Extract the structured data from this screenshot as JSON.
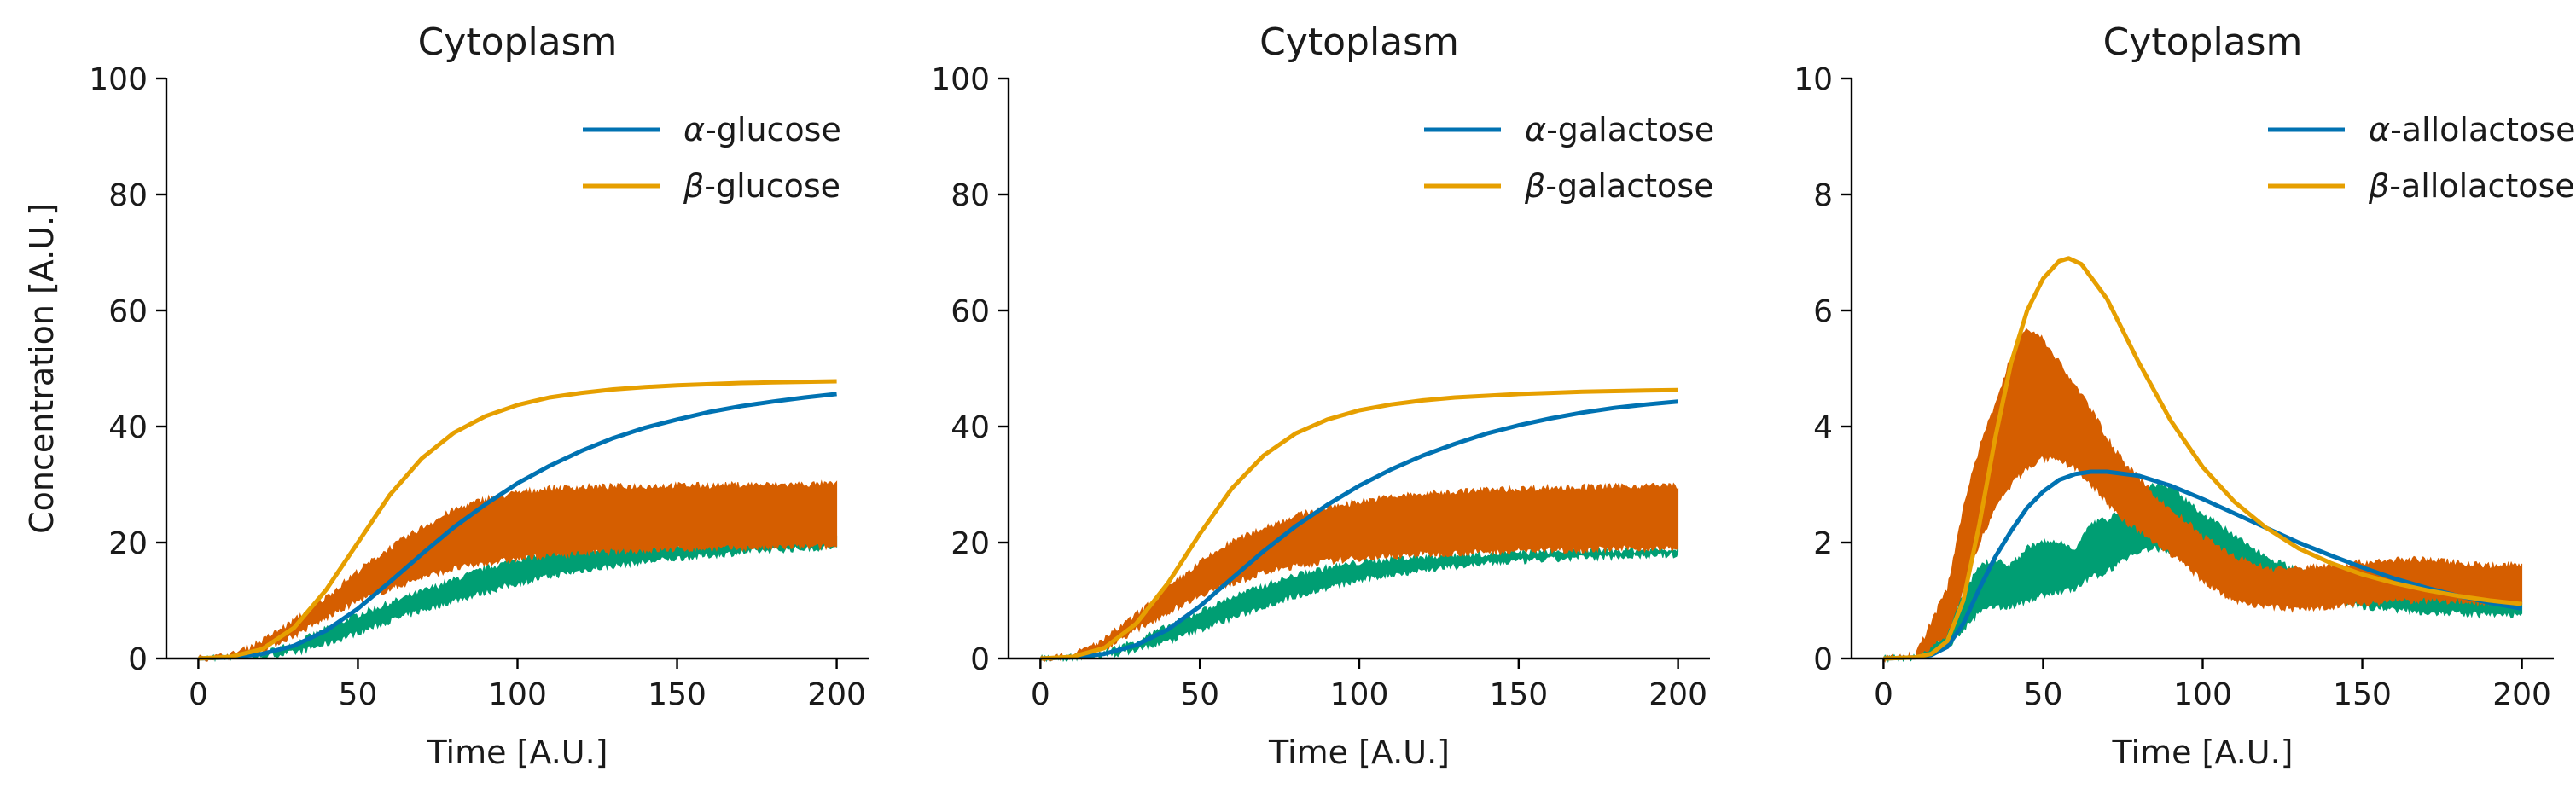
{
  "chart_data": [
    {
      "type": "line",
      "title": "Cytoplasm",
      "xlabel": "Time [A.U.]",
      "ylabel": "Concentration [A.U.]",
      "xlim": [
        -10,
        210
      ],
      "ylim": [
        0,
        100
      ],
      "xticks": [
        0,
        50,
        100,
        150,
        200
      ],
      "yticks": [
        0,
        20,
        40,
        60,
        80,
        100
      ],
      "legend_position": "top-right",
      "series": [
        {
          "name": "α-glucose",
          "greek": "α",
          "suffix": "-glucose",
          "color": "#0072B2",
          "x": [
            0,
            10,
            20,
            30,
            40,
            50,
            60,
            70,
            80,
            90,
            100,
            110,
            120,
            130,
            140,
            150,
            160,
            170,
            180,
            190,
            200
          ],
          "y": [
            0,
            0.2,
            0.8,
            2.2,
            4.8,
            8.6,
            13.2,
            18,
            22.6,
            26.6,
            30.2,
            33.2,
            35.8,
            38,
            39.8,
            41.2,
            42.5,
            43.5,
            44.3,
            45,
            45.6
          ]
        },
        {
          "name": "β-glucose",
          "greek": "β",
          "suffix": "-glucose",
          "color": "#E69F00",
          "x": [
            0,
            10,
            20,
            30,
            40,
            50,
            60,
            70,
            80,
            90,
            100,
            110,
            120,
            130,
            140,
            150,
            160,
            170,
            180,
            190,
            200
          ],
          "y": [
            0,
            0.3,
            1.6,
            5.3,
            11.8,
            20,
            28.2,
            34.5,
            38.9,
            41.8,
            43.7,
            45,
            45.8,
            46.4,
            46.8,
            47.1,
            47.3,
            47.5,
            47.6,
            47.7,
            47.8
          ]
        },
        {
          "type": "band",
          "color": "#009E73",
          "x": [
            0,
            10,
            20,
            30,
            40,
            50,
            60,
            70,
            80,
            90,
            100,
            110,
            120,
            130,
            140,
            150,
            160,
            170,
            180,
            190,
            200
          ],
          "lower": [
            0,
            0.1,
            0.4,
            1,
            2.5,
            4.5,
            6.5,
            8.3,
            10,
            11.5,
            13,
            14.2,
            15.2,
            16,
            16.7,
            17.3,
            17.8,
            18.3,
            18.7,
            19,
            19.2
          ],
          "upper": [
            0,
            0.2,
            0.8,
            2.5,
            5,
            7.5,
            9.5,
            11.5,
            13.5,
            15.5,
            17,
            18,
            18.7,
            19,
            19.2,
            19.5,
            19.8,
            20,
            20.2,
            20.4,
            20.6
          ]
        },
        {
          "type": "band",
          "color": "#D55E00",
          "x": [
            0,
            10,
            20,
            30,
            40,
            50,
            60,
            70,
            80,
            90,
            100,
            110,
            120,
            130,
            140,
            150,
            160,
            170,
            180,
            190,
            200
          ],
          "lower": [
            0,
            0.2,
            1.5,
            4,
            7,
            10,
            12,
            14,
            15.5,
            16.5,
            17.2,
            17.8,
            18.2,
            18.5,
            18.7,
            18.9,
            19,
            19.1,
            19.2,
            19.3,
            19.3
          ],
          "upper": [
            0,
            0.5,
            3,
            6.5,
            10.5,
            15,
            19,
            22.5,
            25.5,
            27.5,
            28.5,
            29.3,
            29.5,
            29.6,
            29.7,
            29.8,
            29.8,
            29.9,
            29.9,
            30,
            30
          ]
        }
      ]
    },
    {
      "type": "line",
      "title": "Cytoplasm",
      "xlabel": "Time [A.U.]",
      "ylabel": "",
      "xlim": [
        -10,
        210
      ],
      "ylim": [
        0,
        100
      ],
      "xticks": [
        0,
        50,
        100,
        150,
        200
      ],
      "yticks": [
        0,
        20,
        40,
        60,
        80,
        100
      ],
      "legend_position": "top-right",
      "series": [
        {
          "name": "α-galactose",
          "greek": "α",
          "suffix": "-galactose",
          "color": "#0072B2",
          "x": [
            0,
            10,
            20,
            30,
            40,
            50,
            60,
            70,
            80,
            90,
            100,
            110,
            120,
            130,
            140,
            150,
            160,
            170,
            180,
            190,
            200
          ],
          "y": [
            0,
            0.2,
            0.8,
            2.3,
            5,
            9,
            13.8,
            18.5,
            22.8,
            26.5,
            29.8,
            32.6,
            35,
            37,
            38.8,
            40.2,
            41.4,
            42.4,
            43.2,
            43.8,
            44.3
          ]
        },
        {
          "name": "β-galactose",
          "greek": "β",
          "suffix": "-galactose",
          "color": "#E69F00",
          "x": [
            0,
            10,
            20,
            30,
            40,
            50,
            60,
            70,
            80,
            90,
            100,
            110,
            120,
            130,
            140,
            150,
            160,
            170,
            180,
            190,
            200
          ],
          "y": [
            0,
            0.3,
            1.8,
            6,
            13,
            21.5,
            29.3,
            35,
            38.8,
            41.2,
            42.8,
            43.8,
            44.5,
            45,
            45.3,
            45.6,
            45.8,
            46,
            46.1,
            46.2,
            46.3
          ]
        },
        {
          "type": "band",
          "color": "#009E73",
          "x": [
            0,
            10,
            20,
            30,
            40,
            50,
            60,
            70,
            80,
            90,
            100,
            110,
            120,
            130,
            140,
            150,
            160,
            170,
            180,
            190,
            200
          ],
          "lower": [
            0,
            0.1,
            0.5,
            1.5,
            3,
            5,
            7,
            9,
            10.8,
            12.2,
            13.5,
            14.5,
            15.3,
            15.9,
            16.4,
            16.8,
            17.1,
            17.4,
            17.6,
            17.8,
            17.9
          ],
          "upper": [
            0,
            0.2,
            1,
            3,
            5.5,
            8,
            10.5,
            12.5,
            14.3,
            15.6,
            16.5,
            17.1,
            17.5,
            17.8,
            18,
            18.2,
            18.4,
            18.5,
            18.6,
            18.7,
            18.8
          ]
        },
        {
          "type": "band",
          "color": "#D55E00",
          "x": [
            0,
            10,
            20,
            30,
            40,
            50,
            60,
            70,
            80,
            90,
            100,
            110,
            120,
            130,
            140,
            150,
            160,
            170,
            180,
            190,
            200
          ],
          "lower": [
            0,
            0.2,
            1.8,
            5,
            8,
            11,
            13,
            14.8,
            16,
            16.8,
            17.3,
            17.7,
            18,
            18.2,
            18.4,
            18.6,
            18.7,
            18.8,
            18.9,
            19,
            19
          ],
          "upper": [
            0,
            0.5,
            3.2,
            7.5,
            12,
            16.5,
            20,
            22.5,
            24.5,
            26,
            27,
            27.8,
            28.3,
            28.7,
            29,
            29.2,
            29.4,
            29.5,
            29.6,
            29.7,
            29.8
          ]
        }
      ]
    },
    {
      "type": "line",
      "title": "Cytoplasm",
      "xlabel": "Time [A.U.]",
      "ylabel": "",
      "xlim": [
        -10,
        210
      ],
      "ylim": [
        0,
        10
      ],
      "xticks": [
        0,
        50,
        100,
        150,
        200
      ],
      "yticks": [
        0,
        2,
        4,
        6,
        8,
        10
      ],
      "legend_position": "top-right",
      "series": [
        {
          "name": "α-allolactose",
          "greek": "α",
          "suffix": "-allolactose",
          "color": "#0072B2",
          "x": [
            0,
            10,
            15,
            20,
            25,
            30,
            35,
            40,
            45,
            50,
            55,
            60,
            65,
            70,
            80,
            90,
            100,
            110,
            120,
            130,
            140,
            150,
            160,
            170,
            180,
            190,
            200
          ],
          "y": [
            0,
            0.02,
            0.06,
            0.2,
            0.6,
            1.2,
            1.75,
            2.2,
            2.6,
            2.88,
            3.08,
            3.18,
            3.22,
            3.22,
            3.15,
            2.98,
            2.75,
            2.5,
            2.25,
            2,
            1.78,
            1.57,
            1.38,
            1.22,
            1.08,
            0.96,
            0.86
          ]
        },
        {
          "name": "β-allolactose",
          "greek": "β",
          "suffix": "-allolactose",
          "color": "#E69F00",
          "x": [
            0,
            10,
            15,
            20,
            25,
            30,
            35,
            40,
            45,
            50,
            55,
            58,
            62,
            70,
            80,
            90,
            100,
            110,
            120,
            130,
            140,
            150,
            160,
            170,
            180,
            190,
            200
          ],
          "y": [
            0,
            0.02,
            0.08,
            0.3,
            1,
            2.3,
            3.8,
            5.1,
            6,
            6.55,
            6.85,
            6.9,
            6.8,
            6.2,
            5.1,
            4.1,
            3.3,
            2.7,
            2.25,
            1.9,
            1.65,
            1.45,
            1.3,
            1.18,
            1.08,
            1,
            0.94
          ]
        },
        {
          "type": "band",
          "color": "#009E73",
          "x": [
            0,
            10,
            20,
            25,
            30,
            35,
            40,
            45,
            50,
            55,
            60,
            65,
            70,
            75,
            80,
            85,
            90,
            95,
            100,
            110,
            120,
            130,
            140,
            150,
            160,
            170,
            180,
            190,
            200
          ],
          "lower": [
            0,
            0,
            0.2,
            0.5,
            0.8,
            0.9,
            0.9,
            1,
            1.1,
            1.15,
            1.2,
            1.4,
            1.5,
            1.7,
            1.85,
            1.9,
            1.85,
            1.75,
            1.6,
            1.4,
            1.25,
            1.1,
            1,
            0.9,
            0.85,
            0.8,
            0.78,
            0.75,
            0.75
          ],
          "upper": [
            0,
            0.02,
            0.45,
            1.1,
            1.6,
            1.7,
            1.6,
            1.9,
            2,
            2,
            1.9,
            2.3,
            2.4,
            2.6,
            2.9,
            3,
            2.95,
            2.7,
            2.5,
            2.1,
            1.75,
            1.5,
            1.3,
            1.2,
            1.15,
            1.1,
            1.05,
            1,
            0.95
          ]
        },
        {
          "type": "band",
          "color": "#D55E00",
          "x": [
            0,
            10,
            20,
            25,
            30,
            35,
            40,
            45,
            50,
            55,
            60,
            65,
            70,
            75,
            80,
            85,
            90,
            95,
            100,
            110,
            120,
            130,
            140,
            150,
            160,
            170,
            180,
            190,
            200
          ],
          "lower": [
            0,
            0,
            0.4,
            1.2,
            2,
            2.6,
            3,
            3.3,
            3.45,
            3.4,
            3.3,
            3,
            2.7,
            2.4,
            2.2,
            2,
            1.8,
            1.6,
            1.35,
            1,
            0.9,
            0.85,
            0.9,
            0.95,
            1,
            1,
            1,
            0.95,
            0.95
          ],
          "upper": [
            0,
            0.05,
            1.2,
            2.6,
            3.6,
            4.4,
            5.2,
            5.7,
            5.5,
            5.1,
            4.7,
            4.3,
            3.8,
            3.4,
            3.1,
            2.8,
            2.55,
            2.35,
            2.1,
            1.75,
            1.55,
            1.55,
            1.6,
            1.65,
            1.7,
            1.7,
            1.65,
            1.6,
            1.6
          ]
        }
      ]
    }
  ]
}
